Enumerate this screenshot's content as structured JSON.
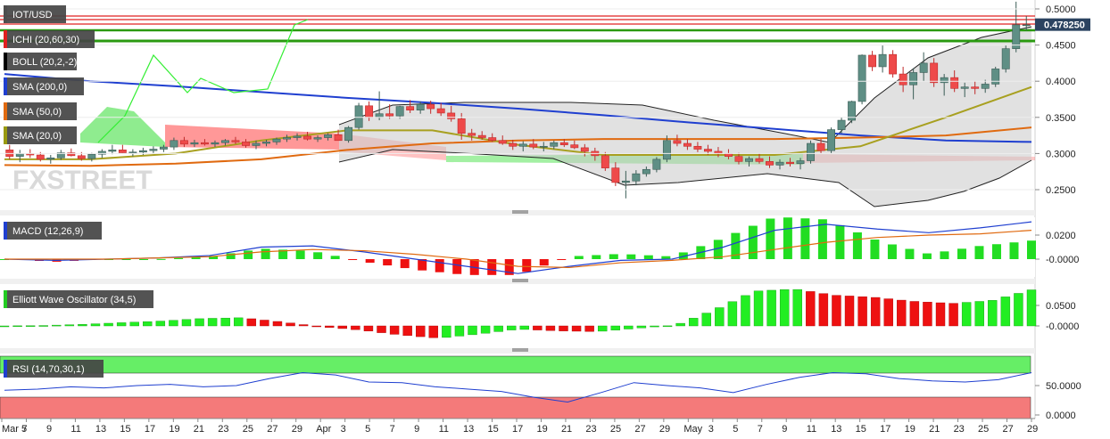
{
  "chart_data": {
    "type": "candlestick",
    "symbol": "IOT/USD",
    "last_price": "0.478250",
    "watermark": "FXSTREET",
    "price_ticks": [
      "0.5000",
      "0.4500",
      "0.4000",
      "0.3500",
      "0.3000",
      "0.2500"
    ],
    "price_ticks_values": [
      0.5,
      0.45,
      0.4,
      0.35,
      0.3,
      0.25
    ],
    "macd_ticks": [
      "0.0200",
      "-0.0000"
    ],
    "ewo_ticks": [
      "0.0500",
      "-0.0000"
    ],
    "rsi_ticks": [
      "50.0000",
      "0.0000"
    ],
    "x_labels": [
      "Mar 5",
      "7",
      "9",
      "11",
      "13",
      "15",
      "17",
      "19",
      "21",
      "23",
      "25",
      "27",
      "29",
      "Apr",
      "3",
      "5",
      "7",
      "9",
      "11",
      "13",
      "15",
      "17",
      "19",
      "21",
      "23",
      "25",
      "27",
      "29",
      "May",
      "3",
      "5",
      "7",
      "9",
      "11",
      "13",
      "15",
      "17",
      "19",
      "21",
      "23",
      "25",
      "27",
      "29"
    ],
    "indicators": [
      {
        "label": "IOT/USD",
        "color": "#4d4d4d"
      },
      {
        "label": "ICHI (20,60,30)",
        "color": "#e02020"
      },
      {
        "label": "BOLL (20,2,-2)",
        "color": "#000000"
      },
      {
        "label": "SMA (200,0)",
        "color": "#1f3fd0"
      },
      {
        "label": "SMA (50,0)",
        "color": "#e06a10"
      },
      {
        "label": "SMA (20,0)",
        "color": "#9a9a10"
      }
    ],
    "panels": [
      {
        "label": "MACD (12,26,9)",
        "color": "#1f3fd0"
      },
      {
        "label": "Elliott Wave Oscillator (34,5)",
        "color": "#22cc22"
      },
      {
        "label": "RSI (14,70,30,1)",
        "color": "#1f3fd0"
      }
    ],
    "y_range": [
      0.227,
      0.513
    ],
    "candles_ohlc": [
      [
        0.305,
        0.312,
        0.292,
        0.296
      ],
      [
        0.296,
        0.305,
        0.288,
        0.3
      ],
      [
        0.3,
        0.306,
        0.294,
        0.298
      ],
      [
        0.298,
        0.302,
        0.289,
        0.292
      ],
      [
        0.292,
        0.298,
        0.286,
        0.294
      ],
      [
        0.294,
        0.305,
        0.291,
        0.301
      ],
      [
        0.301,
        0.307,
        0.296,
        0.297
      ],
      [
        0.297,
        0.302,
        0.29,
        0.293
      ],
      [
        0.293,
        0.301,
        0.289,
        0.299
      ],
      [
        0.299,
        0.306,
        0.294,
        0.303
      ],
      [
        0.303,
        0.312,
        0.299,
        0.305
      ],
      [
        0.305,
        0.312,
        0.3,
        0.301
      ],
      [
        0.301,
        0.306,
        0.296,
        0.302
      ],
      [
        0.302,
        0.308,
        0.298,
        0.304
      ],
      [
        0.304,
        0.31,
        0.3,
        0.306
      ],
      [
        0.306,
        0.312,
        0.302,
        0.309
      ],
      [
        0.309,
        0.322,
        0.305,
        0.318
      ],
      [
        0.318,
        0.323,
        0.309,
        0.313
      ],
      [
        0.313,
        0.319,
        0.309,
        0.315
      ],
      [
        0.315,
        0.32,
        0.311,
        0.313
      ],
      [
        0.313,
        0.318,
        0.309,
        0.315
      ],
      [
        0.315,
        0.32,
        0.311,
        0.318
      ],
      [
        0.318,
        0.323,
        0.313,
        0.316
      ],
      [
        0.316,
        0.32,
        0.308,
        0.311
      ],
      [
        0.311,
        0.318,
        0.306,
        0.314
      ],
      [
        0.314,
        0.319,
        0.31,
        0.316
      ],
      [
        0.316,
        0.322,
        0.312,
        0.32
      ],
      [
        0.32,
        0.326,
        0.316,
        0.322
      ],
      [
        0.322,
        0.328,
        0.318,
        0.324
      ],
      [
        0.324,
        0.33,
        0.318,
        0.32
      ],
      [
        0.32,
        0.325,
        0.316,
        0.322
      ],
      [
        0.322,
        0.328,
        0.318,
        0.326
      ],
      [
        0.326,
        0.333,
        0.322,
        0.318
      ],
      [
        0.318,
        0.338,
        0.315,
        0.336
      ],
      [
        0.336,
        0.37,
        0.333,
        0.366
      ],
      [
        0.366,
        0.372,
        0.345,
        0.35
      ],
      [
        0.35,
        0.386,
        0.346,
        0.355
      ],
      [
        0.355,
        0.368,
        0.348,
        0.352
      ],
      [
        0.352,
        0.366,
        0.348,
        0.365
      ],
      [
        0.365,
        0.374,
        0.356,
        0.36
      ],
      [
        0.36,
        0.372,
        0.355,
        0.368
      ],
      [
        0.368,
        0.373,
        0.355,
        0.362
      ],
      [
        0.362,
        0.37,
        0.352,
        0.356
      ],
      [
        0.356,
        0.366,
        0.344,
        0.348
      ],
      [
        0.348,
        0.356,
        0.319,
        0.328
      ],
      [
        0.328,
        0.334,
        0.318,
        0.325
      ],
      [
        0.325,
        0.331,
        0.319,
        0.322
      ],
      [
        0.322,
        0.328,
        0.316,
        0.318
      ],
      [
        0.318,
        0.325,
        0.312,
        0.314
      ],
      [
        0.314,
        0.319,
        0.305,
        0.31
      ],
      [
        0.31,
        0.317,
        0.303,
        0.313
      ],
      [
        0.313,
        0.32,
        0.306,
        0.309
      ],
      [
        0.309,
        0.316,
        0.303,
        0.31
      ],
      [
        0.31,
        0.318,
        0.306,
        0.315
      ],
      [
        0.315,
        0.32,
        0.309,
        0.312
      ],
      [
        0.312,
        0.318,
        0.306,
        0.308
      ],
      [
        0.308,
        0.313,
        0.296,
        0.303
      ],
      [
        0.303,
        0.308,
        0.29,
        0.297
      ],
      [
        0.297,
        0.302,
        0.276,
        0.28
      ],
      [
        0.28,
        0.288,
        0.255,
        0.26
      ],
      [
        0.26,
        0.276,
        0.238,
        0.262
      ],
      [
        0.262,
        0.277,
        0.256,
        0.272
      ],
      [
        0.272,
        0.282,
        0.268,
        0.278
      ],
      [
        0.278,
        0.295,
        0.274,
        0.292
      ],
      [
        0.292,
        0.325,
        0.288,
        0.318
      ],
      [
        0.318,
        0.326,
        0.31,
        0.314
      ],
      [
        0.314,
        0.32,
        0.305,
        0.31
      ],
      [
        0.31,
        0.316,
        0.302,
        0.306
      ],
      [
        0.306,
        0.312,
        0.298,
        0.303
      ],
      [
        0.303,
        0.309,
        0.295,
        0.3
      ],
      [
        0.3,
        0.306,
        0.292,
        0.296
      ],
      [
        0.296,
        0.301,
        0.285,
        0.289
      ],
      [
        0.289,
        0.296,
        0.282,
        0.293
      ],
      [
        0.293,
        0.3,
        0.286,
        0.289
      ],
      [
        0.289,
        0.296,
        0.28,
        0.284
      ],
      [
        0.284,
        0.292,
        0.278,
        0.288
      ],
      [
        0.288,
        0.294,
        0.282,
        0.286
      ],
      [
        0.286,
        0.294,
        0.278,
        0.29
      ],
      [
        0.29,
        0.318,
        0.286,
        0.314
      ],
      [
        0.314,
        0.32,
        0.3,
        0.304
      ],
      [
        0.304,
        0.336,
        0.3,
        0.333
      ],
      [
        0.333,
        0.35,
        0.328,
        0.346
      ],
      [
        0.346,
        0.373,
        0.342,
        0.372
      ],
      [
        0.372,
        0.437,
        0.368,
        0.436
      ],
      [
        0.436,
        0.442,
        0.414,
        0.42
      ],
      [
        0.42,
        0.45,
        0.412,
        0.437
      ],
      [
        0.437,
        0.443,
        0.405,
        0.41
      ],
      [
        0.41,
        0.42,
        0.385,
        0.395
      ],
      [
        0.395,
        0.418,
        0.375,
        0.412
      ],
      [
        0.412,
        0.44,
        0.4,
        0.425
      ],
      [
        0.425,
        0.432,
        0.392,
        0.398
      ],
      [
        0.398,
        0.41,
        0.38,
        0.405
      ],
      [
        0.405,
        0.415,
        0.385,
        0.39
      ],
      [
        0.39,
        0.398,
        0.378,
        0.392
      ],
      [
        0.392,
        0.4,
        0.382,
        0.39
      ],
      [
        0.39,
        0.402,
        0.384,
        0.396
      ],
      [
        0.396,
        0.42,
        0.392,
        0.417
      ],
      [
        0.417,
        0.45,
        0.412,
        0.445
      ],
      [
        0.445,
        0.51,
        0.44,
        0.478
      ],
      [
        0.478,
        0.49,
        0.47,
        0.478
      ]
    ],
    "sma200": [
      0.41,
      0.4,
      0.393,
      0.385,
      0.377,
      0.37,
      0.362,
      0.353,
      0.343,
      0.334,
      0.325,
      0.318,
      0.316
    ],
    "sma50": [
      0.284,
      0.283,
      0.286,
      0.292,
      0.305,
      0.314,
      0.318,
      0.32,
      0.32,
      0.32,
      0.322,
      0.325,
      0.336
    ],
    "sma20": [
      0.292,
      0.292,
      0.3,
      0.318,
      0.332,
      0.332,
      0.312,
      0.298,
      0.298,
      0.298,
      0.31,
      0.35,
      0.392
    ],
    "macd": [
      0.0,
      -0.001,
      0.0,
      0.001,
      0.003,
      0.01,
      0.011,
      0.006,
      0.0,
      -0.006,
      -0.012,
      -0.006,
      -0.001,
      0.0,
      0.01,
      0.024,
      0.029,
      0.025,
      0.022,
      0.026,
      0.031
    ],
    "macd_signal": [
      0.0,
      0.0,
      0.0,
      0.001,
      0.002,
      0.006,
      0.008,
      0.007,
      0.004,
      0.0,
      -0.006,
      -0.007,
      -0.003,
      -0.001,
      0.002,
      0.008,
      0.014,
      0.018,
      0.02,
      0.021,
      0.024
    ],
    "ewo": [
      0.0,
      0.001,
      0.004,
      0.008,
      0.012,
      0.018,
      0.02,
      0.01,
      -0.002,
      -0.01,
      -0.022,
      -0.03,
      -0.02,
      -0.008,
      -0.012,
      -0.014,
      -0.006,
      0.002,
      0.04,
      0.085,
      0.09,
      0.075,
      0.07,
      0.06,
      0.055,
      0.062,
      0.088
    ],
    "rsi": [
      42,
      44,
      48,
      46,
      50,
      52,
      48,
      50,
      62,
      72,
      68,
      56,
      55,
      48,
      44,
      40,
      30,
      22,
      38,
      55,
      50,
      46,
      38,
      52,
      64,
      72,
      70,
      62,
      58,
      56,
      60,
      72
    ]
  }
}
